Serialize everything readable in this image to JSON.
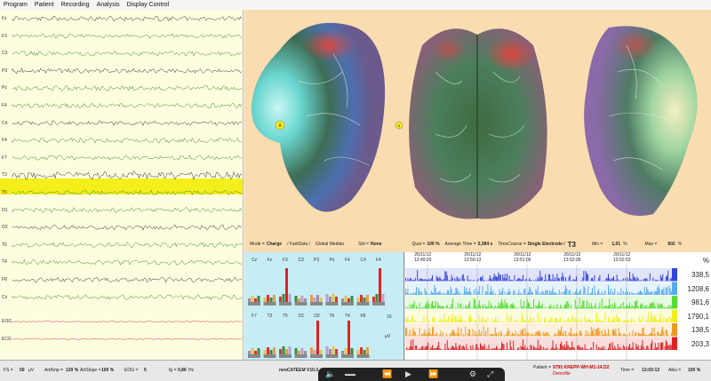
{
  "menu": [
    "Program",
    "Patient",
    "Recording",
    "Analysis",
    "Display Control"
  ],
  "eeg": {
    "channels": [
      "Fz",
      "F3",
      "C3",
      "P3",
      "Pz",
      "F4",
      "C4",
      "F4",
      "F7",
      "T3",
      "T5",
      "O1",
      "O2",
      "T6",
      "T4",
      "F8",
      "Cz",
      "EOG",
      "ECG"
    ],
    "highlighted": "T3"
  },
  "brain": {
    "marker_left": "X",
    "marker_center": "X"
  },
  "controls": {
    "mode_label": "Mode =",
    "mode_value": "Charge",
    "fastdata": "/ FastData /",
    "global": "Global Median",
    "std_label": "Std =",
    "std_value": "None",
    "qual_label": "Qual =",
    "qual_value": "100 %",
    "avg_label": "Average Time =",
    "avg_value": "5,384 s",
    "tc_label": "TimeCourse =",
    "tc_value": "Single Electrode /",
    "electrode": "T3",
    "min_label": "Min =",
    "min_value": "1,01",
    "min_unit": "%",
    "max_label": "Max =",
    "max_value": "602",
    "max_unit": "%"
  },
  "bars": {
    "top_labels": [
      "Cz",
      "Fz",
      "F3",
      "C3",
      "P3",
      "Pz",
      "F4",
      "C4",
      "F4"
    ],
    "bottom_labels": [
      "F7",
      "T3",
      "T5",
      "O1",
      "O2",
      "T6",
      "T4",
      "F8"
    ],
    "unit": "µV",
    "scale": "10"
  },
  "trend": {
    "pct_label": "%",
    "times": [
      {
        "d": "26/11/12",
        "t": "13:49:20"
      },
      {
        "d": "26/11/12",
        "t": "13:50:13"
      },
      {
        "d": "26/11/12",
        "t": "13:51:06"
      },
      {
        "d": "26/11/12",
        "t": "13:52:00"
      },
      {
        "d": "26/11/12",
        "t": "13:52:53"
      }
    ],
    "values": [
      "338,5",
      "1208,6",
      "981,6",
      "1790,1",
      "138,5",
      "203,3"
    ],
    "colors": [
      "#3344dd",
      "#55aaee",
      "#55dd33",
      "#eeee22",
      "#ee9922",
      "#dd2222"
    ]
  },
  "status": {
    "fs_label": "FS =",
    "fs_value": "50",
    "fs_unit": "µV",
    "artamp_label": "ArtAmp =",
    "artamp_value": "120 %",
    "artslope_label": "ArtSlope =",
    "artslope_value": "100 %",
    "eog_label": "EOG =",
    "eog_value": "5",
    "fg_label": "fg =",
    "fg_value": "0,86",
    "fg_unit": "Hz",
    "app_name": "neoCATEEM V10.3",
    "patient_label": "Patient =",
    "patient_value": "9795 KREPP-WH-M1-14.D2",
    "patient_sub": "Demofile",
    "time_label": "Time =",
    "time_value": "13:03:13",
    "aiku_label": "Aiku =",
    "aiku_value": "100 %"
  }
}
